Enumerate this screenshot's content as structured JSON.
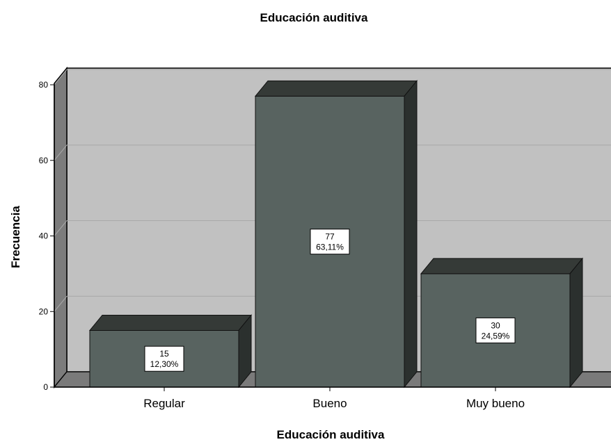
{
  "chart_data": {
    "type": "bar",
    "title": "Educación auditiva",
    "xlabel": "Educación auditiva",
    "ylabel": "Frecuencia",
    "categories": [
      "Regular",
      "Bueno",
      "Muy bueno"
    ],
    "values": [
      15,
      77,
      30
    ],
    "data_labels": [
      [
        "15",
        "12,30%"
      ],
      [
        "77",
        "63,11%"
      ],
      [
        "30",
        "24,59%"
      ]
    ],
    "ylim": [
      0,
      80
    ],
    "yticks": [
      "0",
      "20",
      "40",
      "60",
      "80"
    ],
    "grid": true,
    "three_d": true,
    "colors": {
      "bar_front": "#586360",
      "bar_top": "#353a37",
      "bar_side": "#2b302e",
      "back_wall": "#c1c1c1",
      "left_wall": "#7c7c7c",
      "floor": "#7a7a7a",
      "grid": "#a8a8a8",
      "label_box": "#ffffff"
    }
  }
}
